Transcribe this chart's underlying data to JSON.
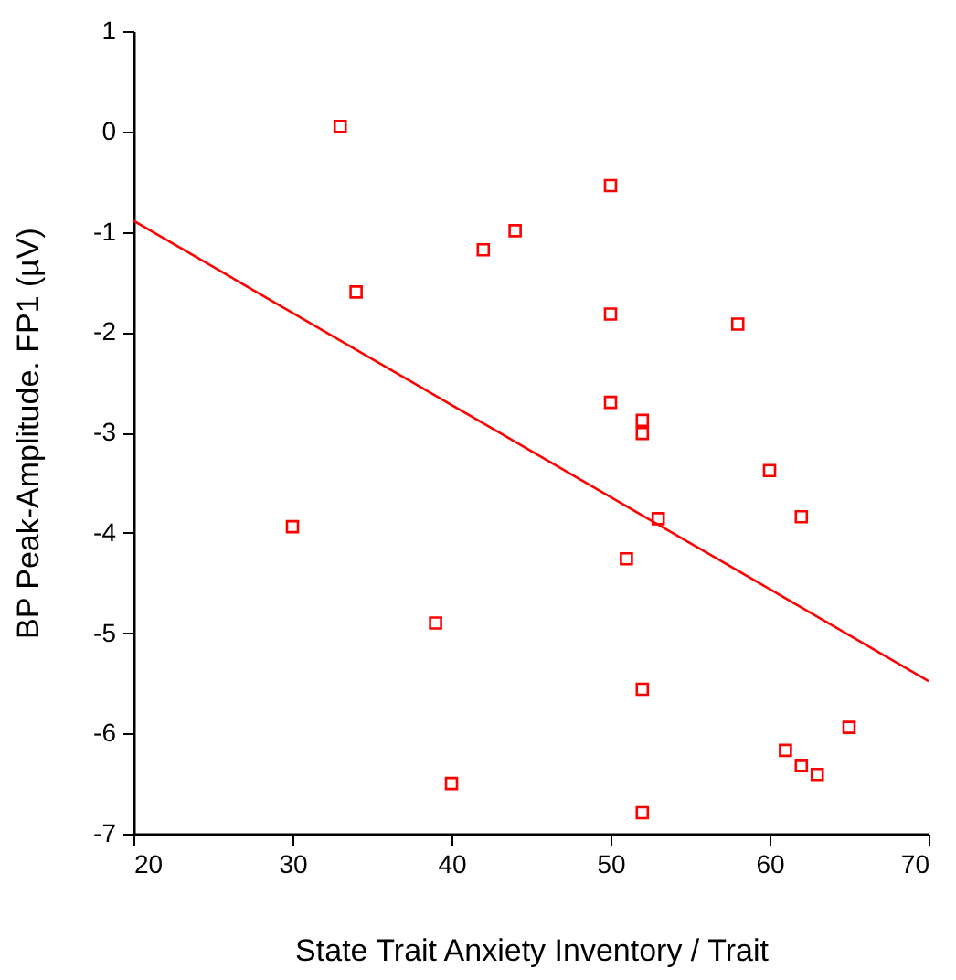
{
  "chart_data": {
    "type": "scatter",
    "xlabel": "State Trait Anxiety Inventory / Trait",
    "ylabel": "BP Peak-Amplitude. FP1 (µV)",
    "xlim": [
      20,
      70
    ],
    "xticks": [
      20,
      30,
      40,
      50,
      60,
      70
    ],
    "ylim": [
      -7,
      1
    ],
    "yticks": [
      -7,
      -6,
      -5,
      -4,
      -3,
      -2,
      -1,
      0,
      1
    ],
    "series": [
      {
        "color": "#ff0000",
        "marker": "square",
        "x": [
          33,
          34,
          42,
          44,
          50,
          50,
          58,
          50,
          52,
          52,
          60,
          62,
          53,
          30,
          51,
          39,
          52,
          65,
          61,
          62,
          63,
          40,
          52
        ],
        "values": [
          0.05,
          -1.6,
          -1.18,
          -0.99,
          -0.54,
          -1.82,
          -1.92,
          -2.7,
          -2.88,
          -3.01,
          -3.38,
          -3.84,
          -3.86,
          -3.94,
          -4.26,
          -4.9,
          -5.56,
          -5.94,
          -6.17,
          -6.32,
          -6.41,
          -6.5,
          -6.79
        ]
      },
      {
        "type": "line",
        "color": "#ff0000",
        "marker": "none",
        "x": [
          20,
          70
        ],
        "values": [
          -0.89,
          -5.48
        ]
      }
    ]
  }
}
